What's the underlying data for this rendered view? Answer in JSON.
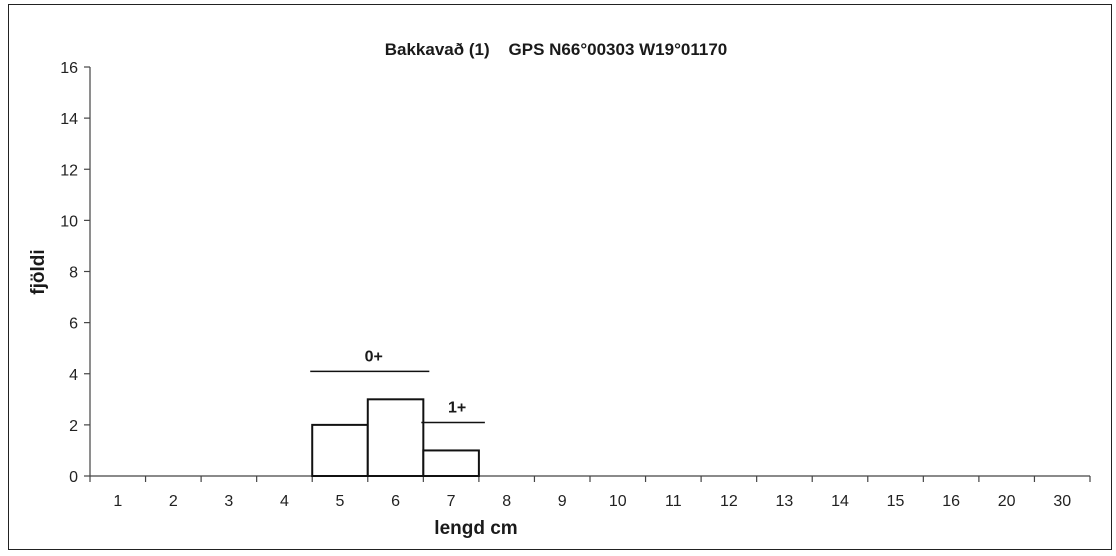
{
  "chart_data": {
    "type": "bar",
    "title": "Bakkavað (1)    GPS N66°00303 W19°01170",
    "xlabel": "lengd cm",
    "ylabel": "fjöldi",
    "categories": [
      "1",
      "2",
      "3",
      "4",
      "5",
      "6",
      "7",
      "8",
      "9",
      "10",
      "11",
      "12",
      "13",
      "14",
      "15",
      "16",
      "20",
      "30"
    ],
    "values": [
      0,
      0,
      0,
      0,
      2,
      3,
      1,
      0,
      0,
      0,
      0,
      0,
      0,
      0,
      0,
      0,
      0,
      0
    ],
    "ylim": [
      0,
      16
    ],
    "yticks": [
      0,
      2,
      4,
      6,
      8,
      10,
      12,
      14,
      16
    ],
    "grid": false,
    "legend": "none",
    "annotations": [
      {
        "text": "0+",
        "from": "5",
        "to": "6"
      },
      {
        "text": "1+",
        "from": "7",
        "to": "7"
      }
    ],
    "colors": {
      "bar_fill": "#ffffff",
      "bar_stroke": "#111111",
      "axis": "#444444"
    }
  }
}
